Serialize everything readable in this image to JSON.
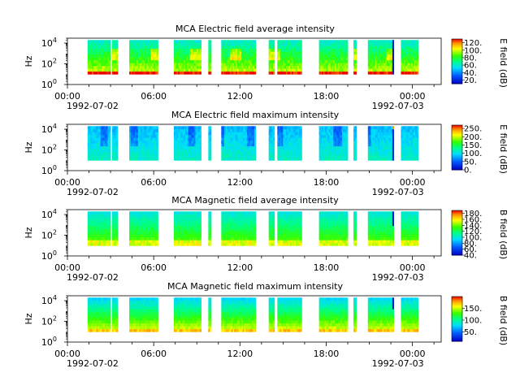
{
  "chart_data": [
    {
      "type": "heatmap",
      "title": "MCA  Electric field average intensity",
      "ylabel": "Hz",
      "y_scale": "log",
      "ylim": [
        1,
        30000
      ],
      "y_ticks": [
        {
          "exp": "0",
          "value": 1
        },
        {
          "exp": "2",
          "value": 100
        },
        {
          "exp": "4",
          "value": 10000
        }
      ],
      "x_ticks": [
        "00:00",
        "06:00",
        "12:00",
        "18:00",
        "00:00"
      ],
      "x_start_date": "1992-07-02",
      "x_end_date": "1992-07-03",
      "colorbar": {
        "label": "E field (dB)",
        "range": [
          10,
          130
        ],
        "ticks": [
          "120.",
          "100.",
          "80.",
          "60.",
          "40.",
          "20."
        ],
        "tick_values": [
          120,
          100,
          80,
          60,
          40,
          20
        ]
      },
      "variant": "e_avg"
    },
    {
      "type": "heatmap",
      "title": "MCA  Electric field maximum intensity",
      "ylabel": "Hz",
      "y_scale": "log",
      "ylim": [
        1,
        30000
      ],
      "y_ticks": [
        {
          "exp": "0",
          "value": 1
        },
        {
          "exp": "2",
          "value": 100
        },
        {
          "exp": "4",
          "value": 10000
        }
      ],
      "x_ticks": [
        "00:00",
        "06:00",
        "12:00",
        "18:00",
        "00:00"
      ],
      "x_start_date": "1992-07-02",
      "x_end_date": "1992-07-03",
      "colorbar": {
        "label": "E field (dB)",
        "range": [
          0,
          270
        ],
        "ticks": [
          "250.",
          "200.",
          "150.",
          "100.",
          "50.",
          "0."
        ],
        "tick_values": [
          250,
          200,
          150,
          100,
          50,
          0
        ]
      },
      "variant": "e_max"
    },
    {
      "type": "heatmap",
      "title": "MCA  Magnetic field average intensity",
      "ylabel": "Hz",
      "y_scale": "log",
      "ylim": [
        1,
        30000
      ],
      "y_ticks": [
        {
          "exp": "0",
          "value": 1
        },
        {
          "exp": "2",
          "value": 100
        },
        {
          "exp": "4",
          "value": 10000
        }
      ],
      "x_ticks": [
        "00:00",
        "06:00",
        "12:00",
        "18:00",
        "00:00"
      ],
      "x_start_date": "1992-07-02",
      "x_end_date": "1992-07-03",
      "colorbar": {
        "label": "B field (dB)",
        "range": [
          40,
          190
        ],
        "ticks": [
          "180.",
          "160.",
          "140.",
          "120.",
          "100.",
          "80.",
          "60.",
          "40."
        ],
        "tick_values": [
          180,
          160,
          140,
          120,
          100,
          80,
          60,
          40
        ]
      },
      "variant": "b_avg"
    },
    {
      "type": "heatmap",
      "title": "MCA  Magnetic field maximum intensity",
      "ylabel": "Hz",
      "y_scale": "log",
      "ylim": [
        1,
        30000
      ],
      "y_ticks": [
        {
          "exp": "0",
          "value": 1
        },
        {
          "exp": "2",
          "value": 100
        },
        {
          "exp": "4",
          "value": 10000
        }
      ],
      "x_ticks": [
        "00:00",
        "06:00",
        "12:00",
        "18:00",
        "00:00"
      ],
      "x_start_date": "1992-07-02",
      "x_end_date": "1992-07-03",
      "colorbar": {
        "label": "B field (dB)",
        "range": [
          10,
          200
        ],
        "ticks": [
          "150.",
          "100.",
          "50."
        ],
        "tick_values": [
          150,
          100,
          50
        ]
      },
      "variant": "b_max"
    }
  ],
  "data_gaps_hours": [
    [
      0,
      1.4
    ],
    [
      3.0,
      3.1
    ],
    [
      3.45,
      4.3
    ],
    [
      6.2,
      7.3
    ],
    [
      9.2,
      9.7
    ],
    [
      9.9,
      10.6
    ],
    [
      13.0,
      13.9
    ],
    [
      14.3,
      14.5
    ],
    [
      16.2,
      17.4
    ],
    [
      19.5,
      19.9
    ],
    [
      20.1,
      20.9
    ],
    [
      22.7,
      23.2
    ],
    [
      24.35,
      25.5
    ]
  ],
  "colors": {
    "background": "#ffffff",
    "axes": "#000000",
    "no_data": "#ffffff"
  }
}
